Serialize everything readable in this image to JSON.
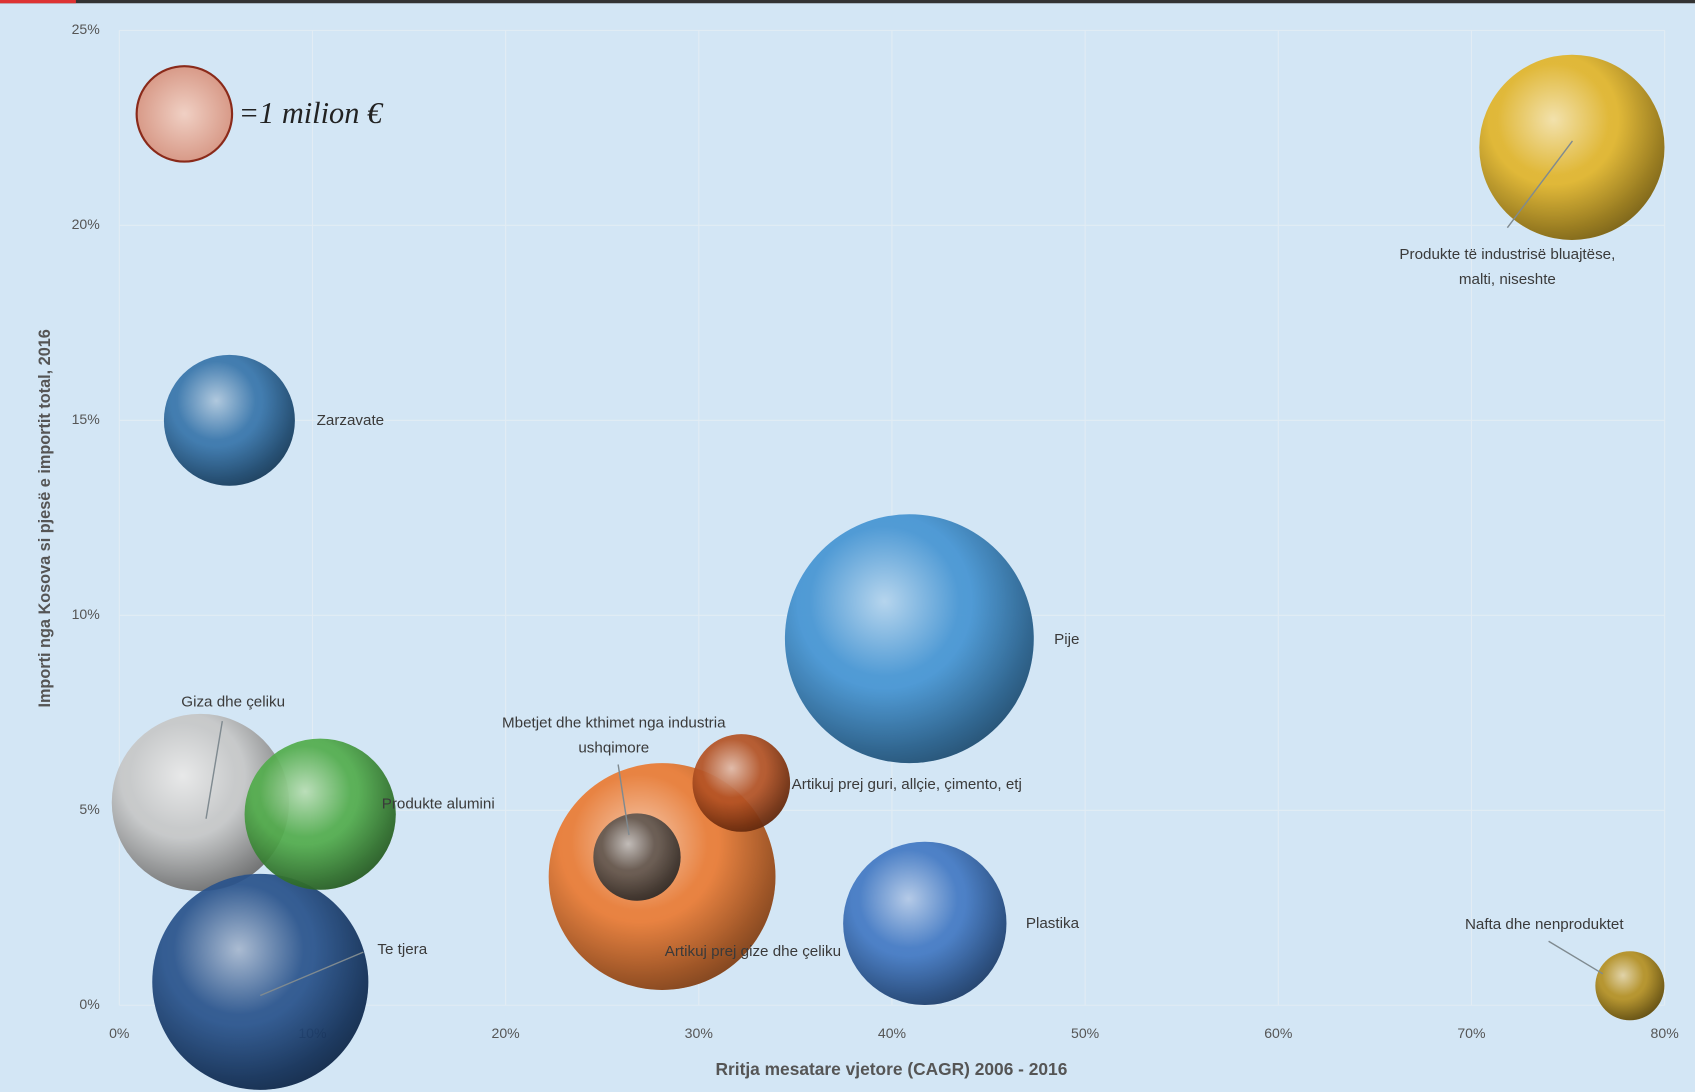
{
  "chart_data": {
    "type": "bubble",
    "x_label": "Rritja mesatare vjetore (CAGR) 2006 - 2016",
    "y_label": "Importi nga Kosova si pjesë e importit total, 2016",
    "size_legend": "=1 milion €",
    "labels": [
      [
        "Giza dhe çeliku"
      ],
      [
        "Te tjera"
      ],
      [
        "Produkte alumini"
      ],
      [
        "Artikuj prej gize dhe çeliku"
      ],
      [
        "Mbetjet dhe kthimet nga industria",
        "ushqimore"
      ],
      [
        "Artikuj prej guri, allçie, çimento, etj"
      ],
      [
        "Zarzavate"
      ],
      [
        "Pije"
      ],
      [
        "Plastika"
      ],
      [
        "Produkte të industrisë bluajtëse,",
        "malti, niseshte"
      ],
      [
        "Nafta dhe nenproduktet"
      ]
    ],
    "x": [
      4.2,
      7.3,
      10.4,
      28.1,
      26.8,
      32.2,
      5.7,
      40.9,
      41.7,
      75.2,
      78.2
    ],
    "values": [
      5.2,
      0.6,
      4.9,
      3.3,
      3.8,
      5.7,
      15.0,
      9.4,
      2.1,
      22.0,
      0.5
    ],
    "sizes": [
      3.3,
      4.9,
      2.4,
      5.4,
      0.8,
      1.0,
      1.8,
      6.5,
      2.8,
      3.6,
      0.5
    ],
    "colors": [
      "#c4c4c4",
      "#1f4a85",
      "#4aa844",
      "#e8742a",
      "#5a5048",
      "#b04a1a",
      "#2e6ea6",
      "#3d8fd0",
      "#3a72c0",
      "#e0b020",
      "#b08a18"
    ],
    "xlim": [
      0,
      80
    ],
    "xticks": [
      {
        "value": 0,
        "label": "0%"
      },
      {
        "value": 10,
        "label": "10%"
      },
      {
        "value": 20,
        "label": "20%"
      },
      {
        "value": 30,
        "label": "30%"
      },
      {
        "value": 40,
        "label": "40%"
      },
      {
        "value": 50,
        "label": "50%"
      },
      {
        "value": 60,
        "label": "60%"
      },
      {
        "value": 70,
        "label": "70%"
      },
      {
        "value": 80,
        "label": "80%"
      }
    ],
    "ylim": [
      0,
      25
    ],
    "yticks": [
      {
        "value": 0,
        "label": "0%"
      },
      {
        "value": 5,
        "label": "5%"
      },
      {
        "value": 10,
        "label": "10%"
      },
      {
        "value": 15,
        "label": "15%"
      },
      {
        "value": 20,
        "label": "20%"
      },
      {
        "value": 25,
        "label": "25%"
      }
    ],
    "grid": true
  }
}
